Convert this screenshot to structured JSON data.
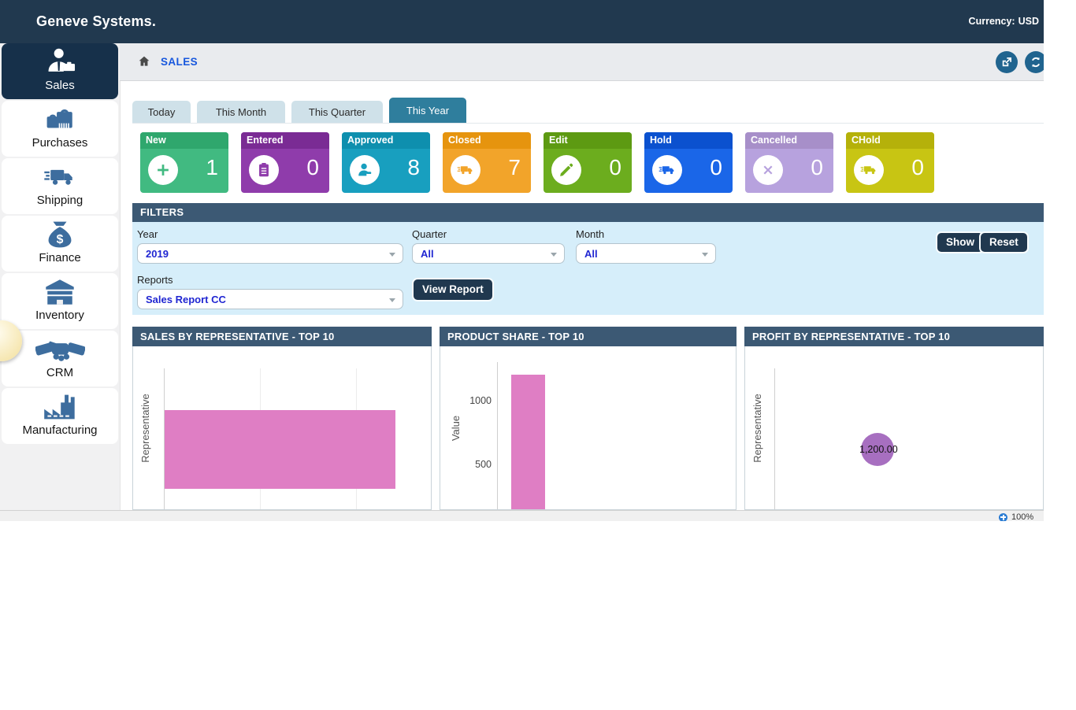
{
  "header": {
    "brand": "Geneve Systems.",
    "currency_label": "Currency:",
    "currency_value": "USD"
  },
  "breadcrumb": {
    "page": "SALES"
  },
  "toolbar": {
    "icons": [
      {
        "name": "export-icon"
      },
      {
        "name": "refresh-icon"
      }
    ]
  },
  "sidebar": {
    "items": [
      {
        "label": "Sales",
        "icon": "salesman-icon",
        "active": true
      },
      {
        "label": "Purchases",
        "icon": "shopping-bags-icon",
        "active": false
      },
      {
        "label": "Shipping",
        "icon": "truck-icon",
        "active": false
      },
      {
        "label": "Finance",
        "icon": "money-bag-icon",
        "active": false
      },
      {
        "label": "Inventory",
        "icon": "warehouse-icon",
        "active": false
      },
      {
        "label": "CRM",
        "icon": "handshake-icon",
        "active": false
      },
      {
        "label": "Manufacturing",
        "icon": "factory-icon",
        "active": false
      }
    ]
  },
  "tabs": [
    {
      "label": "Today",
      "active": false
    },
    {
      "label": "This Month",
      "active": false
    },
    {
      "label": "This Quarter",
      "active": false
    },
    {
      "label": "This Year",
      "active": true
    }
  ],
  "status_cards": [
    {
      "label": "New",
      "value": "1",
      "icon": "plus-icon",
      "body_color": "#41ba81",
      "header_color": "#2fa76d"
    },
    {
      "label": "Entered",
      "value": "0",
      "icon": "clipboard-icon",
      "body_color": "#8f3cab",
      "header_color": "#7a2b94"
    },
    {
      "label": "Approved",
      "value": "8",
      "icon": "approver-icon",
      "body_color": "#189fbf",
      "header_color": "#0e8fae"
    },
    {
      "label": "Closed",
      "value": "7",
      "icon": "truck-icon",
      "body_color": "#f2a42a",
      "header_color": "#e6940e"
    },
    {
      "label": "Edit",
      "value": "0",
      "icon": "pencil-icon",
      "body_color": "#6cad1e",
      "header_color": "#5d9a12"
    },
    {
      "label": "Hold",
      "value": "0",
      "icon": "truck-icon",
      "body_color": "#1a66e8",
      "header_color": "#0b51cf"
    },
    {
      "label": "Cancelled",
      "value": "0",
      "icon": "x-icon",
      "body_color": "#b7a2de",
      "header_color": "#a78fc9"
    },
    {
      "label": "CHold",
      "value": "0",
      "icon": "truck-icon",
      "body_color": "#c8c513",
      "header_color": "#b5b10a"
    }
  ],
  "filters": {
    "title": "FILTERS",
    "fields": [
      {
        "label": "Year",
        "value": "2019"
      },
      {
        "label": "Quarter",
        "value": "All"
      },
      {
        "label": "Month",
        "value": "All"
      }
    ],
    "reports_field": {
      "label": "Reports",
      "value": "Sales Report CC"
    },
    "show_button": "Show",
    "reset_button": "Reset",
    "view_report_button": "View Report"
  },
  "chart_data": [
    {
      "type": "bar",
      "orientation": "horizontal",
      "title": "SALES BY REPRESENTATIVE - TOP 10",
      "xlabel": "",
      "ylabel": "Representative",
      "categories": [
        ""
      ],
      "values": [
        1200
      ],
      "xlim": [
        0,
        1380
      ],
      "grid": true,
      "gridline_values": [
        500,
        1000
      ],
      "bar_color": "#df7ec4",
      "legend": "none"
    },
    {
      "type": "bar",
      "orientation": "vertical",
      "title": "PRODUCT SHARE - TOP 10",
      "xlabel": "",
      "ylabel": "Value",
      "categories": [
        ""
      ],
      "values": [
        1210
      ],
      "yticks": [
        500,
        1000
      ],
      "ylim": [
        0,
        1430
      ],
      "grid": false,
      "bar_color": "#df7ec4",
      "legend": "none"
    },
    {
      "type": "bubble",
      "title": "PROFIT BY REPRESENTATIVE - TOP 10",
      "xlabel": "",
      "ylabel": "Representative",
      "points": [
        {
          "label": "1,200.00",
          "value": 1200
        }
      ],
      "bubble_color": "#a76fc0",
      "legend": "none"
    }
  ],
  "statusbar": {
    "zoom_level": "100%"
  },
  "colors": {
    "header_bg": "#21394f",
    "active_nav_bg": "#16304a",
    "panel_header_bg": "#3c5974",
    "filters_body_bg": "#d6eefa",
    "accent_blue_text": "#2026d2",
    "breadcrumb_link": "#1757dd",
    "tab_active_bg": "#2f7e9d",
    "sidebar_icon": "#3d6d9e",
    "bar_pink": "#df7ec4",
    "bubble_purple": "#a76fc0"
  }
}
